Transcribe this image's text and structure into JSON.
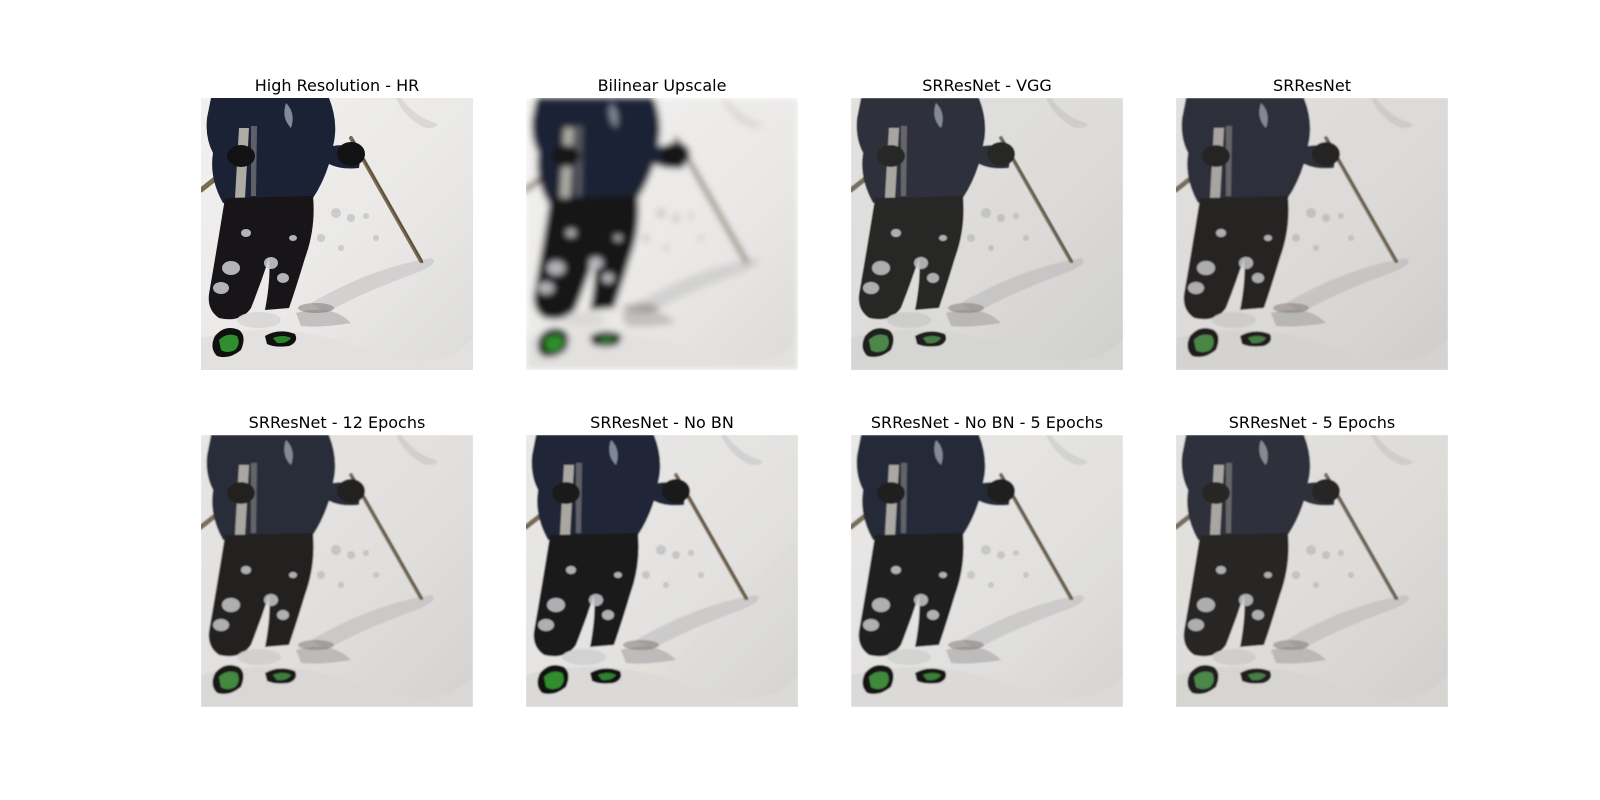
{
  "figure": {
    "panels": [
      {
        "title": "High Resolution - HR",
        "style": "hr"
      },
      {
        "title": "Bilinear Upscale",
        "style": "blur"
      },
      {
        "title": "SRResNet - VGG",
        "style": "vgg"
      },
      {
        "title": "SRResNet",
        "style": "srresnet"
      },
      {
        "title": "SRResNet - 12 Epochs",
        "style": "e12"
      },
      {
        "title": "SRResNet - No BN",
        "style": "nobn"
      },
      {
        "title": "SRResNet - No BN - 5 Epochs",
        "style": "nobn5"
      },
      {
        "title": "SRResNet - 5 Epochs",
        "style": "e5"
      }
    ]
  },
  "colors": {
    "snow": "#e9e8e6",
    "snow_shadow": "#c9c8c8",
    "jacket": "#1c2236",
    "pants": "#171518",
    "ski_green": "#2f8f2c",
    "pole": "#7a6a52"
  }
}
